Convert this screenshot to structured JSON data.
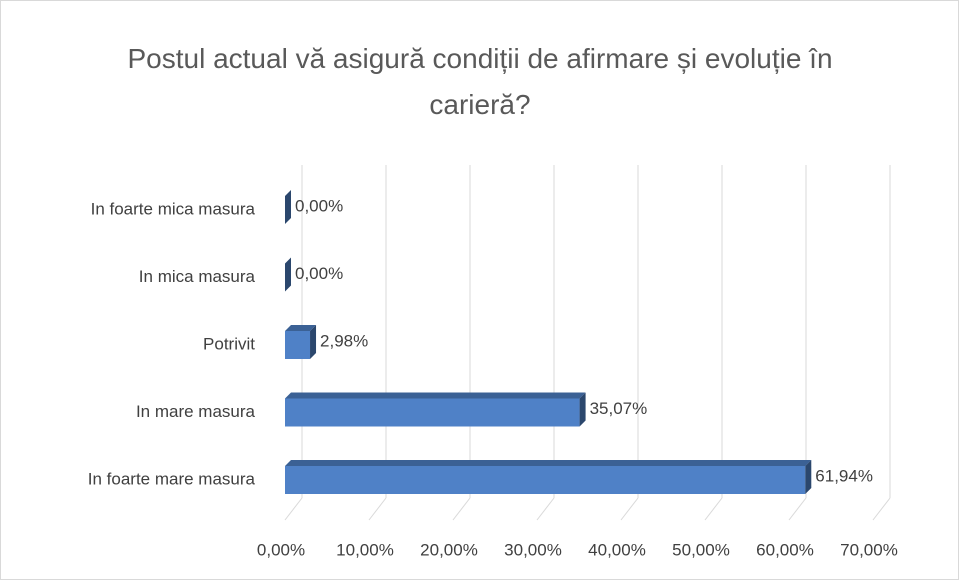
{
  "chart_data": {
    "type": "bar3d-horizontal",
    "title": "Postul actual vă asigură condiții de afirmare și evoluție în carieră?",
    "categories": [
      "In foarte mica masura",
      "In mica masura",
      "Potrivit",
      "In mare masura",
      "In foarte mare masura"
    ],
    "values": [
      0,
      0,
      2.98,
      35.07,
      61.94
    ],
    "value_labels": [
      "0,00%",
      "0,00%",
      "2,98%",
      "35,07%",
      "61,94%"
    ],
    "color": "#4f81c7",
    "xlim": [
      0,
      70
    ],
    "xticks": [
      {
        "value": 0,
        "label": "0,00%"
      },
      {
        "value": 10,
        "label": "10,00%"
      },
      {
        "value": 20,
        "label": "20,00%"
      },
      {
        "value": 30,
        "label": "30,00%"
      },
      {
        "value": 40,
        "label": "40,00%"
      },
      {
        "value": 50,
        "label": "50,00%"
      },
      {
        "value": 60,
        "label": "60,00%"
      },
      {
        "value": 70,
        "label": "70,00%"
      }
    ],
    "grid": true
  }
}
